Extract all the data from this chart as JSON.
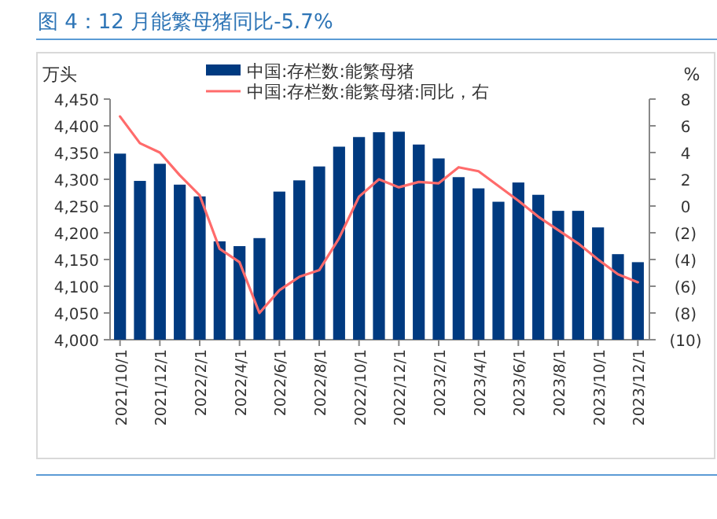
{
  "chart_data": {
    "type": "bar",
    "title": "图 4：12 月能繁母猪同比-5.7%",
    "ylabel": "万头",
    "y2label": "%",
    "legend": "top",
    "grid": false,
    "categories": [
      "2021/10/1",
      null,
      "2021/12/1",
      null,
      "2022/2/1",
      null,
      "2022/4/1",
      null,
      "2022/6/1",
      null,
      "2022/8/1",
      null,
      "2022/10/1",
      null,
      "2022/12/1",
      null,
      "2023/2/1",
      null,
      "2023/4/1",
      null,
      "2023/6/1",
      null,
      "2023/8/1",
      null,
      "2023/10/1",
      null,
      "2023/12/1"
    ],
    "ylim": [
      4000,
      4450
    ],
    "yticks": [
      {
        "value": 4000,
        "label": "4,000"
      },
      {
        "value": 4050,
        "label": "4,050"
      },
      {
        "value": 4100,
        "label": "4,100"
      },
      {
        "value": 4150,
        "label": "4,150"
      },
      {
        "value": 4200,
        "label": "4,200"
      },
      {
        "value": 4250,
        "label": "4,250"
      },
      {
        "value": 4300,
        "label": "4,300"
      },
      {
        "value": 4350,
        "label": "4,350"
      },
      {
        "value": 4400,
        "label": "4,400"
      },
      {
        "value": 4450,
        "label": "4,450"
      }
    ],
    "y2lim": [
      -10,
      8
    ],
    "y2ticks": [
      {
        "value": -10,
        "label": "(10)"
      },
      {
        "value": -8,
        "label": "(8)"
      },
      {
        "value": -6,
        "label": "(6)"
      },
      {
        "value": -4,
        "label": "(4)"
      },
      {
        "value": -2,
        "label": "(2)"
      },
      0,
      2,
      4,
      6,
      8
    ],
    "series": [
      {
        "name": "中国:存栏数:能繁母猪",
        "color": "#003a80",
        "values": [
          4348,
          4297,
          4329,
          4290,
          4268,
          4184,
          4175,
          4190,
          4277,
          4298,
          4324,
          4361,
          4379,
          4388,
          4389,
          4365,
          4339,
          4304,
          4283,
          4258,
          4294,
          4271,
          4241,
          4241,
          4210,
          4160,
          4145
        ]
      },
      {
        "name": "中国:存栏数:能繁母猪:同比，右",
        "type": "line",
        "axis": "y2",
        "color": "#ff6b6b",
        "values": [
          6.7,
          4.7,
          4.0,
          2.3,
          0.8,
          -3.2,
          -4.2,
          -8.0,
          -6.3,
          -5.3,
          -4.8,
          -2.4,
          0.7,
          2.0,
          1.4,
          1.8,
          1.7,
          2.9,
          2.6,
          1.5,
          0.4,
          -0.8,
          -1.8,
          -2.8,
          -4.0,
          -5.1,
          -5.7
        ]
      }
    ]
  }
}
